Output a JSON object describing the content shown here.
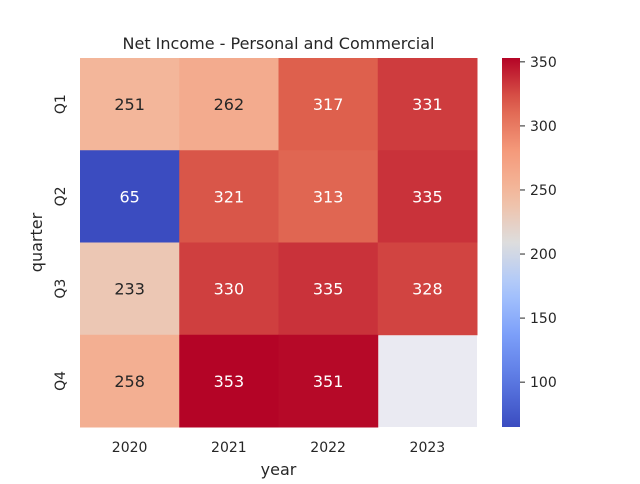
{
  "chart_data": {
    "type": "heatmap",
    "title": "Net Income - Personal and Commercial",
    "xlabel": "year",
    "ylabel": "quarter",
    "x_categories": [
      "2020",
      "2021",
      "2022",
      "2023"
    ],
    "y_categories": [
      "Q1",
      "Q2",
      "Q3",
      "Q4"
    ],
    "values": [
      [
        251,
        262,
        317,
        331
      ],
      [
        65,
        321,
        313,
        335
      ],
      [
        233,
        330,
        335,
        328
      ],
      [
        258,
        353,
        351,
        null
      ]
    ],
    "colormap": "coolwarm",
    "vmin": 65,
    "vmax": 353,
    "colorbar_ticks": [
      100,
      150,
      200,
      250,
      300,
      350
    ],
    "missing_color": "#eaeaf2",
    "grid": true
  }
}
